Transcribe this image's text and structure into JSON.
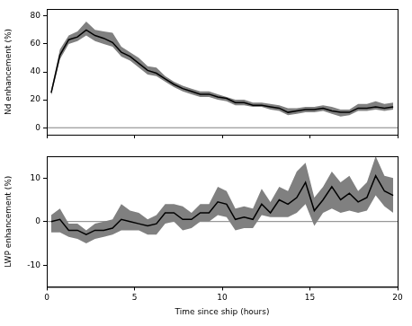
{
  "chart_data": [
    {
      "type": "line",
      "y_label": "Nd enhancement (%)",
      "tick_labels": "y",
      "x": [
        0.25,
        0.75,
        1.25,
        1.75,
        2.25,
        2.75,
        3.25,
        3.75,
        4.25,
        4.75,
        5.25,
        5.75,
        6.25,
        6.75,
        7.25,
        7.75,
        8.25,
        8.75,
        9.25,
        9.75,
        10.25,
        10.75,
        11.25,
        11.75,
        12.25,
        12.75,
        13.25,
        13.75,
        14.25,
        14.75,
        15.25,
        15.75,
        16.25,
        16.75,
        17.25,
        17.75,
        18.25,
        18.75,
        19.25,
        19.75
      ],
      "series": [
        {
          "type": "area",
          "color": "#808080",
          "lower": [
            23,
            49,
            60,
            62,
            66,
            62,
            60,
            58,
            51,
            48,
            43,
            38,
            37,
            33,
            29,
            26,
            24,
            22,
            22,
            20,
            19,
            16,
            16,
            15,
            15,
            13,
            12,
            9,
            10,
            11,
            11,
            12,
            10,
            8,
            9,
            12,
            12,
            13,
            12,
            13
          ],
          "upper": [
            27,
            56,
            66,
            69,
            76,
            70,
            69,
            68,
            58,
            54,
            50,
            44,
            43,
            37,
            33,
            30,
            28,
            26,
            26,
            24,
            22,
            20,
            20,
            18,
            18,
            17,
            16,
            14,
            14,
            15,
            15,
            16,
            15,
            13,
            13,
            17,
            17,
            19,
            17,
            18
          ]
        },
        {
          "type": "line",
          "color": "#000000",
          "values": [
            25,
            52,
            63,
            65,
            70,
            66,
            64,
            61,
            54,
            51,
            46,
            41,
            39,
            35,
            31,
            28,
            26,
            24,
            24,
            22,
            21,
            18,
            18,
            16,
            16,
            15,
            14,
            11,
            12,
            13,
            13,
            14,
            12,
            11,
            11,
            14,
            14,
            15,
            14,
            15
          ]
        }
      ],
      "hline": 0,
      "xlim": [
        0,
        20
      ],
      "xticks": [
        0,
        5,
        10,
        15,
        20
      ],
      "ylim": [
        -5,
        85
      ],
      "yticks": [
        0,
        20,
        40,
        60,
        80
      ],
      "grid": false
    },
    {
      "type": "line",
      "x_label": "Time since ship (hours)",
      "y_label": "LWP enhancement (%)",
      "x": [
        0.25,
        0.75,
        1.25,
        1.75,
        2.25,
        2.75,
        3.25,
        3.75,
        4.25,
        4.75,
        5.25,
        5.75,
        6.25,
        6.75,
        7.25,
        7.75,
        8.25,
        8.75,
        9.25,
        9.75,
        10.25,
        10.75,
        11.25,
        11.75,
        12.25,
        12.75,
        13.25,
        13.75,
        14.25,
        14.75,
        15.25,
        15.75,
        16.25,
        16.75,
        17.25,
        17.75,
        18.25,
        18.75,
        19.25,
        19.75
      ],
      "series": [
        {
          "type": "area",
          "color": "#808080",
          "lower": [
            -2.5,
            -2.5,
            -3.5,
            -4,
            -5,
            -4,
            -3.5,
            -3,
            -2,
            -2,
            -2,
            -3,
            -3,
            -0.5,
            0,
            -2,
            -1.5,
            0,
            0,
            1.5,
            1,
            -2,
            -1.5,
            -1.5,
            1.5,
            1,
            1,
            1,
            2,
            4,
            -1,
            2,
            3,
            2,
            2.5,
            2,
            2.5,
            6,
            3.5,
            2
          ],
          "upper": [
            1.5,
            3,
            -0.5,
            -0.5,
            -2,
            -0.5,
            0,
            0.5,
            4,
            2.5,
            2,
            0.5,
            1.5,
            4,
            4,
            3.5,
            2,
            4,
            4,
            8,
            7,
            3,
            3.5,
            3,
            7.5,
            4.5,
            8,
            7,
            11.5,
            13.5,
            5.5,
            8,
            11.5,
            9,
            10.5,
            7,
            9,
            15,
            10.5,
            10
          ]
        },
        {
          "type": "line",
          "color": "#000000",
          "values": [
            0,
            0.5,
            -2,
            -2,
            -3,
            -2,
            -2,
            -1.5,
            0.5,
            0,
            -0.5,
            -1,
            -0.5,
            2,
            2,
            0.5,
            0.5,
            2,
            2,
            4.5,
            4,
            0.5,
            1,
            0.5,
            4,
            2,
            5,
            4,
            5.5,
            9,
            2.5,
            5,
            8,
            5,
            6.5,
            4.5,
            5.5,
            10.5,
            7,
            6
          ]
        }
      ],
      "hline": 0,
      "xlim": [
        0,
        20
      ],
      "xticks": [
        0,
        5,
        10,
        15,
        20
      ],
      "ylim": [
        -15,
        15
      ],
      "yticks": [
        -10,
        0,
        10
      ],
      "grid": false
    }
  ]
}
